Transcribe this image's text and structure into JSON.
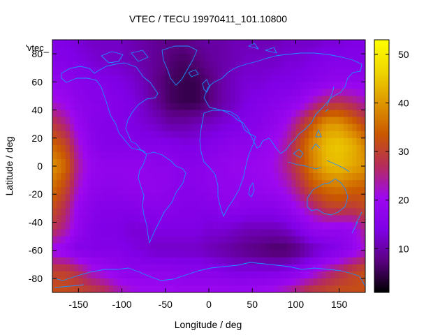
{
  "chart_data": {
    "type": "heatmap",
    "title": "VTEC / TECU 19970411_101.10800",
    "xlabel": "Longitude / deg",
    "ylabel": "Latitude / deg",
    "key_label": "'vtec_",
    "xlim": [
      -180,
      180
    ],
    "ylim": [
      -90,
      90
    ],
    "xticks": [
      -150,
      -100,
      -50,
      0,
      50,
      100,
      150
    ],
    "yticks": [
      -80,
      -60,
      -40,
      -20,
      0,
      20,
      40,
      60,
      80
    ],
    "colorbar": {
      "min": 1,
      "max": 53,
      "ticks": [
        10,
        20,
        30,
        40,
        50
      ]
    },
    "grid": {
      "lon_step": 15,
      "lat_step": 15,
      "lons": [
        -180,
        -165,
        -150,
        -135,
        -120,
        -105,
        -90,
        -75,
        -60,
        -45,
        -30,
        -15,
        0,
        15,
        30,
        45,
        60,
        75,
        90,
        105,
        120,
        135,
        150,
        165,
        180
      ],
      "lats": [
        90,
        75,
        60,
        45,
        30,
        15,
        0,
        -15,
        -30,
        -45,
        -60,
        -75,
        -90
      ],
      "values": [
        [
          14,
          14,
          13,
          12,
          12,
          12,
          11,
          10,
          9,
          8,
          8,
          9,
          10,
          10,
          11,
          11,
          11,
          11,
          12,
          12,
          12,
          13,
          13,
          14,
          14
        ],
        [
          15,
          15,
          14,
          13,
          12,
          12,
          11,
          10,
          9,
          7,
          6,
          7,
          9,
          10,
          11,
          12,
          12,
          12,
          13,
          13,
          14,
          15,
          15,
          15,
          15
        ],
        [
          18,
          17,
          16,
          15,
          15,
          14,
          13,
          11,
          8,
          6,
          5,
          5,
          7,
          10,
          12,
          13,
          13,
          14,
          14,
          15,
          16,
          17,
          18,
          18,
          18
        ],
        [
          22,
          20,
          17,
          16,
          16,
          15,
          14,
          12,
          9,
          6,
          5,
          5,
          7,
          10,
          12,
          14,
          15,
          16,
          17,
          19,
          23,
          27,
          28,
          26,
          23
        ],
        [
          29,
          25,
          19,
          16,
          15,
          15,
          14,
          13,
          12,
          10,
          10,
          11,
          12,
          13,
          14,
          15,
          16,
          18,
          21,
          27,
          34,
          40,
          40,
          36,
          31
        ],
        [
          35,
          31,
          22,
          17,
          15,
          15,
          15,
          15,
          15,
          15,
          14,
          14,
          15,
          16,
          17,
          17,
          18,
          20,
          24,
          32,
          39,
          44,
          45,
          43,
          38
        ],
        [
          40,
          35,
          24,
          19,
          18,
          18,
          18,
          18,
          17,
          17,
          16,
          16,
          17,
          18,
          19,
          19,
          20,
          21,
          25,
          31,
          38,
          43,
          44,
          42,
          40
        ],
        [
          36,
          31,
          22,
          18,
          17,
          17,
          18,
          18,
          18,
          17,
          16,
          16,
          17,
          18,
          18,
          18,
          19,
          20,
          22,
          27,
          33,
          36,
          37,
          35,
          34
        ],
        [
          32,
          27,
          19,
          16,
          15,
          15,
          15,
          16,
          16,
          16,
          15,
          15,
          15,
          16,
          17,
          16,
          16,
          16,
          18,
          21,
          25,
          29,
          30,
          29,
          31
        ],
        [
          28,
          24,
          18,
          15,
          14,
          14,
          13,
          13,
          14,
          14,
          14,
          14,
          13,
          13,
          12,
          11,
          11,
          11,
          12,
          15,
          18,
          19,
          18,
          19,
          25
        ],
        [
          20,
          18,
          15,
          15,
          15,
          15,
          14,
          13,
          12,
          12,
          12,
          12,
          11,
          10,
          9,
          8,
          7,
          6,
          6,
          8,
          11,
          13,
          15,
          18,
          22
        ],
        [
          30,
          30,
          27,
          22,
          20,
          18,
          17,
          17,
          17,
          17,
          16,
          16,
          16,
          15,
          14,
          14,
          14,
          14,
          15,
          17,
          20,
          24,
          27,
          30,
          32
        ],
        [
          32,
          32,
          31,
          30,
          28,
          24,
          22,
          21,
          21,
          21,
          20,
          20,
          20,
          20,
          20,
          20,
          21,
          22,
          24,
          27,
          30,
          31,
          32,
          32,
          32
        ]
      ]
    }
  }
}
